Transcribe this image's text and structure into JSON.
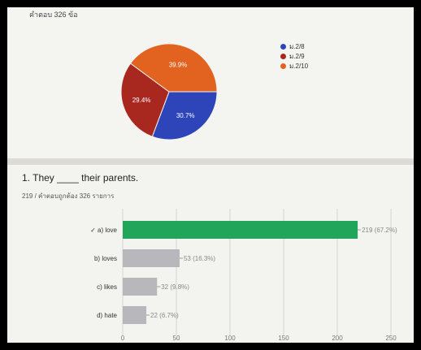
{
  "header": {
    "response_count": "คำตอบ 326 ข้อ"
  },
  "pie": {
    "slices": [
      {
        "label": "ม.2/8",
        "value": 30.7,
        "display": "30.7%",
        "color": "#2d45b8"
      },
      {
        "label": "ม.2/9",
        "value": 29.4,
        "display": "29.4%",
        "color": "#a8271f"
      },
      {
        "label": "ม.2/10",
        "value": 39.9,
        "display": "39.9%",
        "color": "#e2621f"
      }
    ]
  },
  "question": {
    "title": "1. They ____ their parents.",
    "correct_summary": "219 / คำตอบถูกต้อง 326 รายการ"
  },
  "chart_data": {
    "type": "bar",
    "orientation": "horizontal",
    "categories": [
      "✓ a) love",
      "b) loves",
      "c) likes",
      "d) hate"
    ],
    "values": [
      219,
      53,
      32,
      22
    ],
    "value_labels": [
      "219 (67.2%)",
      "53 (16.3%)",
      "32 (9.8%)",
      "22 (6.7%)"
    ],
    "colors": [
      "#21a55a",
      "#b8b8bc",
      "#b8b8bc",
      "#b8b8bc"
    ],
    "xlim": [
      0,
      250
    ],
    "xticks": [
      0,
      50,
      100,
      150,
      200,
      250
    ],
    "grid": true
  }
}
